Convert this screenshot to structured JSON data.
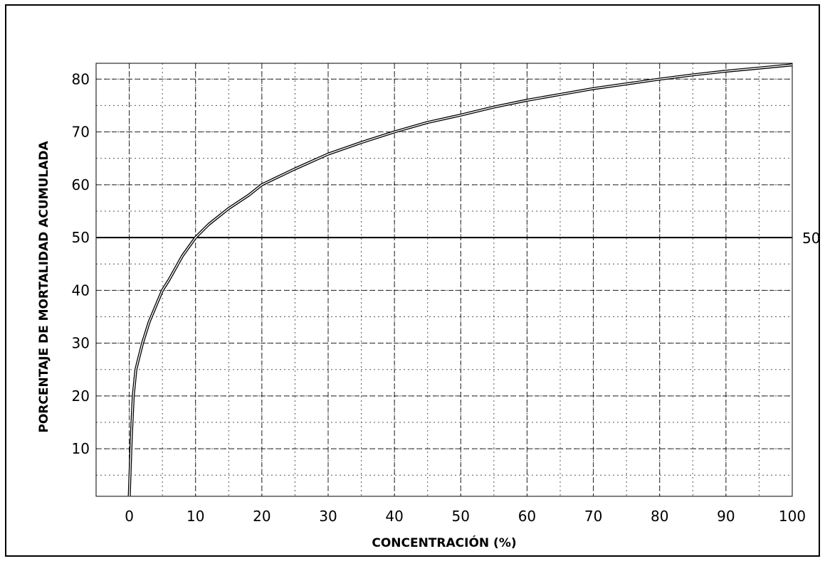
{
  "chart_data": {
    "type": "line",
    "title": "",
    "xlabel": "CONCENTRACIÓN (%)",
    "ylabel": "PORCENTAJE DE MORTALIDAD ACUMULADA",
    "xlim": [
      -5,
      100
    ],
    "ylim": [
      1,
      83
    ],
    "x_ticks": [
      0,
      10,
      20,
      30,
      40,
      50,
      60,
      70,
      80,
      90,
      100
    ],
    "y_ticks": [
      10,
      20,
      30,
      40,
      50,
      60,
      70,
      80
    ],
    "minor_grid": {
      "x_step": 5,
      "y_step": 5,
      "style": "dotted"
    },
    "grid": true,
    "reference_line": {
      "y": 50,
      "label": "50"
    },
    "series": [
      {
        "x": [
          0,
          0.3,
          0.6,
          1,
          2,
          3,
          4,
          5,
          6,
          8,
          10,
          12,
          15,
          18,
          20,
          25,
          30,
          35,
          40,
          45,
          50,
          55,
          60,
          65,
          70,
          75,
          80,
          85,
          90,
          95,
          100
        ],
        "y": [
          1,
          12,
          20,
          25,
          30,
          34,
          37,
          40,
          42,
          46.5,
          50,
          52.5,
          55.5,
          58,
          60,
          63,
          65.8,
          68,
          70,
          71.8,
          73.2,
          74.7,
          76,
          77.1,
          78.2,
          79.1,
          80,
          80.8,
          81.5,
          82.1,
          82.7
        ],
        "color": "#000000"
      }
    ]
  }
}
